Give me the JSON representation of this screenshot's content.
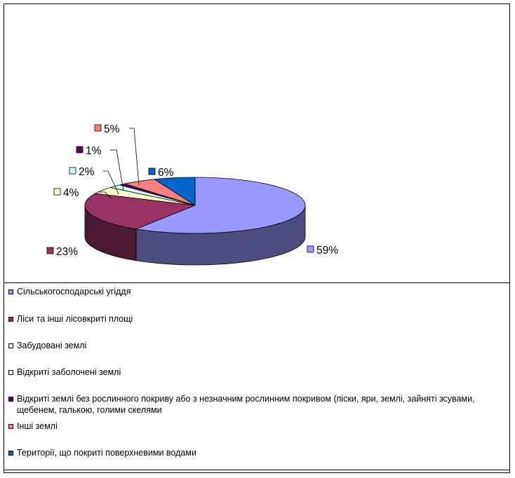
{
  "chart_data": {
    "type": "pie",
    "title": "",
    "style": "3d",
    "slices": [
      {
        "name": "Сільськогосподарські угіддя",
        "value": 59,
        "label": "59%",
        "color": "#9999ff",
        "side": "#4d4d80"
      },
      {
        "name": "Ліси та інші лісовкриті площі",
        "value": 23,
        "label": "23%",
        "color": "#993366",
        "side": "#4d1a33"
      },
      {
        "name": "Забудовані землі",
        "value": 4,
        "label": "4%",
        "color": "#ffffcc",
        "side": "#808066"
      },
      {
        "name": "Відкриті заболочені землі",
        "value": 2,
        "label": "2%",
        "color": "#ccffff",
        "side": "#668080"
      },
      {
        "name": "Відкриті землі без рослинного покриву або з незначним рослинним покривом (піски, яри, землі, зайняті зсувами, щебенем, галькою, голими скелями",
        "value": 1,
        "label": "1%",
        "color": "#660066",
        "side": "#330033"
      },
      {
        "name": "Інші землі",
        "value": 5,
        "label": "5%",
        "color": "#ff8080",
        "side": "#804040"
      },
      {
        "name": "Території, що покриті поверхневими водами",
        "value": 6,
        "label": "6%",
        "color": "#0066cc",
        "side": "#003366"
      }
    ],
    "legend": "bottom"
  }
}
